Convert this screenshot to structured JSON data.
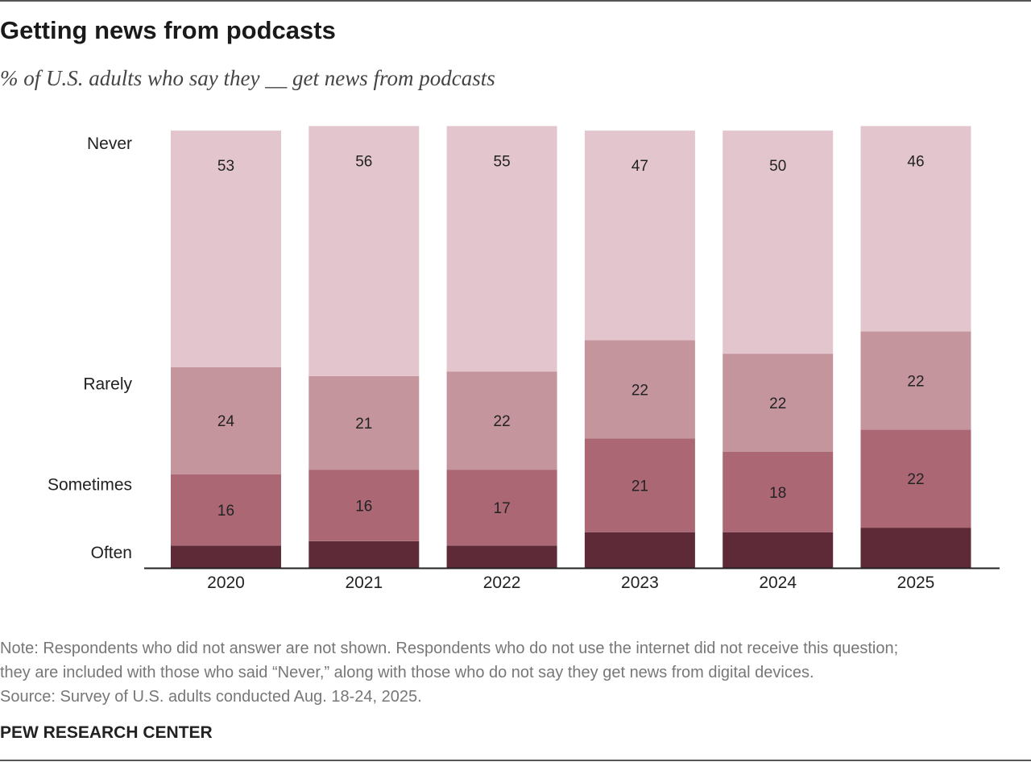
{
  "title": "Getting news from podcasts",
  "subtitle": "% of U.S. adults who say they __ get news from podcasts",
  "note_lines": [
    "Note: Respondents who did not answer are not shown. Respondents who do not use the internet did not receive this question;",
    "they are included with those who said “Never,” along with those who do not say they get news from digital devices."
  ],
  "source": "Source: Survey of U.S. adults conducted Aug. 18-24, 2025.",
  "brand": "PEW RESEARCH CENTER",
  "chart_data": {
    "type": "bar",
    "stacked": true,
    "categories": [
      "2020",
      "2021",
      "2022",
      "2023",
      "2024",
      "2025"
    ],
    "series": [
      {
        "name": "Often",
        "values": [
          5,
          6,
          5,
          8,
          8,
          9
        ],
        "color": "#5e2a37",
        "show_labels": false
      },
      {
        "name": "Sometimes",
        "values": [
          16,
          16,
          17,
          21,
          18,
          22
        ],
        "color": "#ac6775",
        "show_labels": true
      },
      {
        "name": "Rarely",
        "values": [
          24,
          21,
          22,
          22,
          22,
          22
        ],
        "color": "#c4959d",
        "show_labels": true
      },
      {
        "name": "Never",
        "values": [
          53,
          56,
          55,
          47,
          50,
          46
        ],
        "color": "#e3c6cd",
        "show_labels": true
      }
    ],
    "legend": "left, aligned with first bar segments",
    "ylim": [
      0,
      100
    ],
    "grid": false
  }
}
